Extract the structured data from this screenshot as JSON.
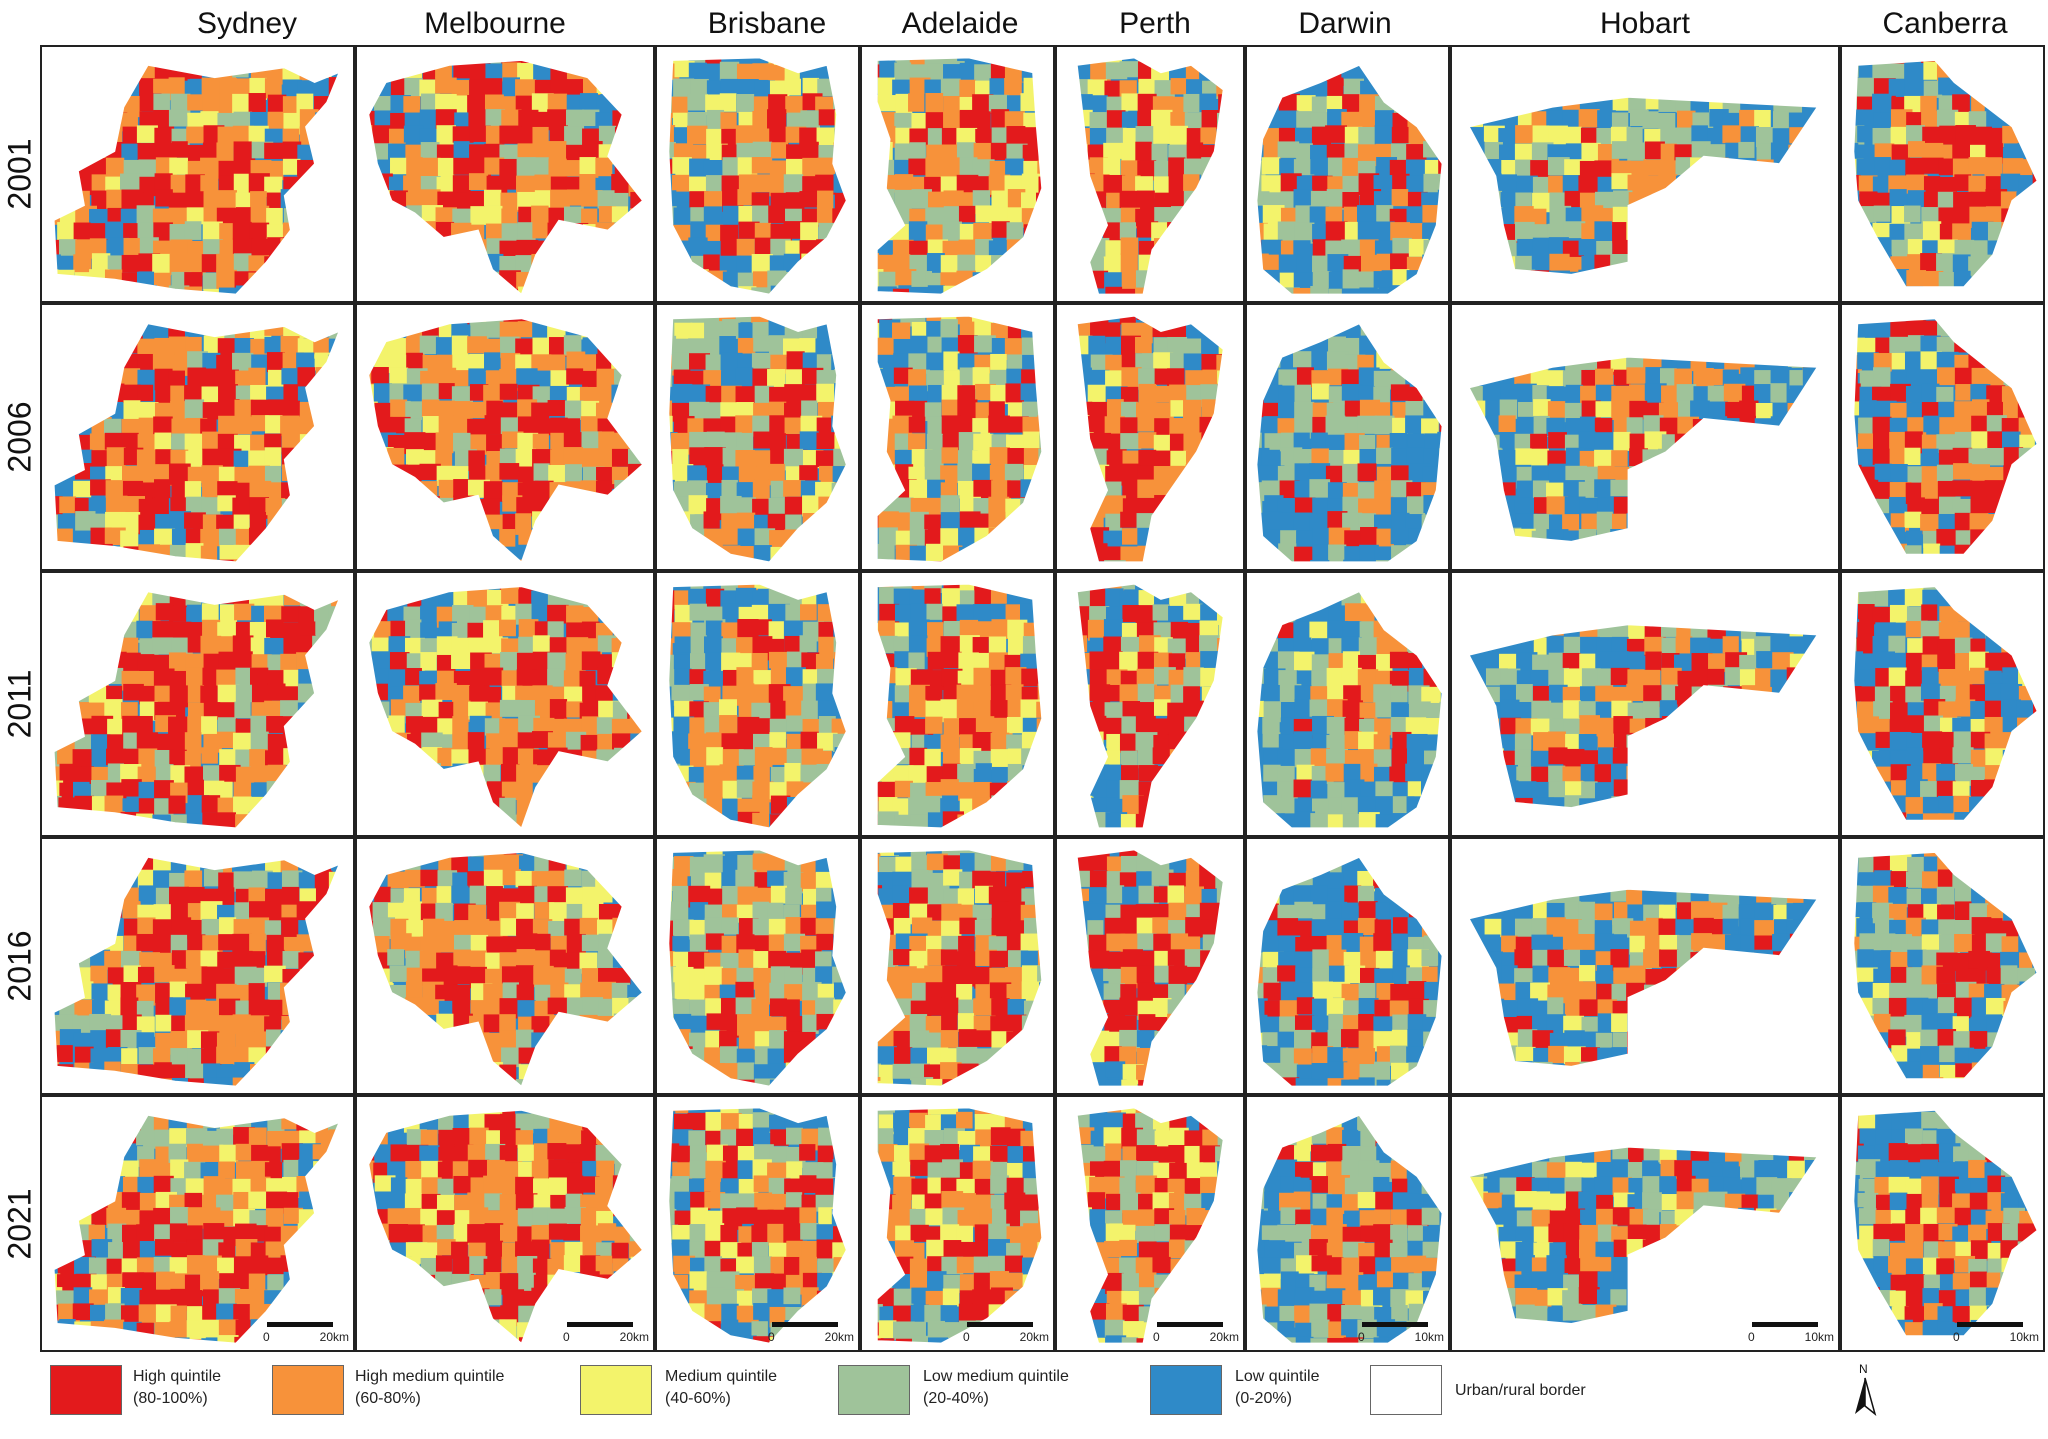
{
  "columns": [
    {
      "id": "sydney",
      "label": "Sydney",
      "scale_left": "0",
      "scale_right": "20km"
    },
    {
      "id": "melbourne",
      "label": "Melbourne",
      "scale_left": "0",
      "scale_right": "20km"
    },
    {
      "id": "brisbane",
      "label": "Brisbane",
      "scale_left": "0",
      "scale_right": "20km"
    },
    {
      "id": "adelaide",
      "label": "Adelaide",
      "scale_left": "0",
      "scale_right": "20km"
    },
    {
      "id": "perth",
      "label": "Perth",
      "scale_left": "0",
      "scale_right": "20km"
    },
    {
      "id": "darwin",
      "label": "Darwin",
      "scale_left": "0",
      "scale_right": "10km"
    },
    {
      "id": "hobart",
      "label": "Hobart",
      "scale_left": "0",
      "scale_right": "10km"
    },
    {
      "id": "canberra",
      "label": "Canberra",
      "scale_left": "0",
      "scale_right": "10km"
    }
  ],
  "rows": [
    {
      "id": "y2001",
      "label": "2001"
    },
    {
      "id": "y2006",
      "label": "2006"
    },
    {
      "id": "y2011",
      "label": "2011"
    },
    {
      "id": "y2016",
      "label": "2016"
    },
    {
      "id": "y2021",
      "label": "2021"
    }
  ],
  "legend": [
    {
      "id": "high",
      "line1": "High quintile",
      "line2": "(80-100%)",
      "color": "#e31a1c"
    },
    {
      "id": "high-medium",
      "line1": "High medium quintile",
      "line2": "(60-80%)",
      "color": "#f7923a"
    },
    {
      "id": "medium",
      "line1": "Medium quintile",
      "line2": "(40-60%)",
      "color": "#f3f36b"
    },
    {
      "id": "low-medium",
      "line1": "Low medium quintile",
      "line2": "(20-40%)",
      "color": "#9fc39a"
    },
    {
      "id": "low",
      "line1": "Low quintile",
      "line2": "(0-20%)",
      "color": "#2f8ac8"
    },
    {
      "id": "urban-rural",
      "line1": "Urban/rural border",
      "line2": "",
      "color": "#ffffff"
    }
  ],
  "north_arrow": {
    "label": "N"
  },
  "colors": {
    "high": "#e31a1c",
    "high_medium": "#f7923a",
    "medium": "#f3f36b",
    "low_medium": "#9fc39a",
    "low": "#2f8ac8",
    "border": "#222222"
  }
}
